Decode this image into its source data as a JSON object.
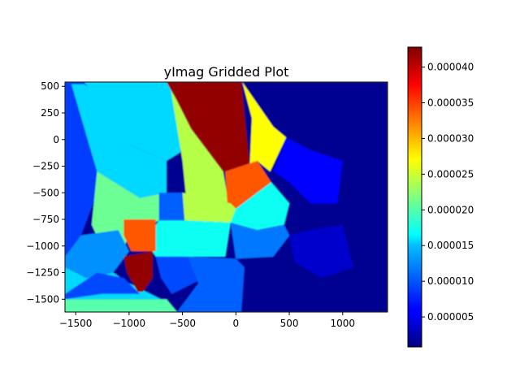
{
  "chart_data": {
    "type": "heatmap",
    "title": "yImag Gridded Plot",
    "xlabel": "",
    "ylabel": "",
    "xlim": [
      -1600,
      1420
    ],
    "ylim": [
      -1620,
      540
    ],
    "x_ticks": [
      -1500,
      -1000,
      -500,
      0,
      500,
      1000
    ],
    "y_ticks": [
      500,
      250,
      0,
      -250,
      -500,
      -750,
      -1000,
      -1250,
      -1500
    ],
    "x_tick_labels": [
      "−1500",
      "−1000",
      "−500",
      "0",
      "500",
      "1000"
    ],
    "y_tick_labels": [
      "500",
      "250",
      "0",
      "−250",
      "−500",
      "−750",
      "−1000",
      "−1250",
      "−1500"
    ],
    "colormap": "jet",
    "colorbar": {
      "range": [
        8e-07,
        4.28e-05
      ],
      "ticks": [
        5e-06,
        1e-05,
        1.5e-05,
        2e-05,
        2.5e-05,
        3e-05,
        3.5e-05,
        4e-05
      ],
      "tick_labels": [
        "0.000005",
        "0.000010",
        "0.000015",
        "0.000020",
        "0.000025",
        "0.000030",
        "0.000035",
        "0.000040"
      ]
    },
    "grid": false,
    "regions": [
      {
        "value": 1.5e-06,
        "points": [
          [
            -1600,
            540
          ],
          [
            1420,
            540
          ],
          [
            1420,
            -1620
          ],
          [
            -1600,
            -1620
          ]
        ]
      },
      {
        "value": 8.5e-06,
        "points": [
          [
            -1600,
            540
          ],
          [
            -900,
            540
          ],
          [
            -1100,
            -200
          ],
          [
            -1300,
            -500
          ],
          [
            -1450,
            -900
          ],
          [
            -1600,
            -1100
          ]
        ]
      },
      {
        "value": 1.5e-05,
        "points": [
          [
            -1540,
            520
          ],
          [
            -1420,
            520
          ],
          [
            -1100,
            250
          ],
          [
            -1000,
            -50
          ],
          [
            -650,
            -200
          ],
          [
            -650,
            -500
          ],
          [
            -900,
            -550
          ],
          [
            -1300,
            -300
          ]
        ]
      },
      {
        "value": 1.5e-05,
        "points": [
          [
            -1420,
            540
          ],
          [
            -620,
            540
          ],
          [
            -500,
            300
          ],
          [
            -520,
            -120
          ],
          [
            -650,
            -200
          ],
          [
            -1000,
            -50
          ]
        ]
      },
      {
        "value": 2.1e-05,
        "points": [
          [
            -1300,
            -300
          ],
          [
            -900,
            -550
          ],
          [
            -650,
            -500
          ],
          [
            -720,
            -760
          ],
          [
            -1000,
            -900
          ],
          [
            -1150,
            -1250
          ],
          [
            -1350,
            -800
          ]
        ]
      },
      {
        "value": 2.4e-05,
        "points": [
          [
            -620,
            540
          ],
          [
            -500,
            420
          ],
          [
            -300,
            200
          ],
          [
            -120,
            -300
          ],
          [
            -50,
            -700
          ],
          [
            -450,
            -700
          ],
          [
            -500,
            -200
          ]
        ]
      },
      {
        "value": 4.2e-05,
        "points": [
          [
            -650,
            540
          ],
          [
            50,
            540
          ],
          [
            130,
            -250
          ],
          [
            -120,
            -300
          ],
          [
            -420,
            100
          ],
          [
            -560,
            380
          ]
        ]
      },
      {
        "value": 2.7e-05,
        "points": [
          [
            60,
            540
          ],
          [
            350,
            120
          ],
          [
            470,
            20
          ],
          [
            320,
            -300
          ],
          [
            200,
            -200
          ],
          [
            130,
            -250
          ],
          [
            150,
            200
          ]
        ]
      },
      {
        "value": 3.4e-05,
        "points": [
          [
            -100,
            -300
          ],
          [
            200,
            -200
          ],
          [
            330,
            -400
          ],
          [
            0,
            -650
          ],
          [
            -80,
            -600
          ]
        ]
      },
      {
        "value": 1.7e-05,
        "points": [
          [
            0,
            -650
          ],
          [
            330,
            -400
          ],
          [
            500,
            -600
          ],
          [
            450,
            -800
          ],
          [
            200,
            -850
          ],
          [
            -200,
            -750
          ]
        ]
      },
      {
        "value": 1e-05,
        "points": [
          [
            -720,
            -500
          ],
          [
            -500,
            -500
          ],
          [
            -480,
            -760
          ],
          [
            -720,
            -760
          ]
        ]
      },
      {
        "value": 2.4e-05,
        "points": [
          [
            -500,
            -500
          ],
          [
            -50,
            -600
          ],
          [
            0,
            -650
          ],
          [
            -50,
            -780
          ],
          [
            -480,
            -760
          ]
        ]
      },
      {
        "value": 1.7e-05,
        "points": [
          [
            -720,
            -760
          ],
          [
            -480,
            -760
          ],
          [
            -400,
            -1100
          ],
          [
            -750,
            -1100
          ],
          [
            -850,
            -950
          ]
        ]
      },
      {
        "value": 1.7e-05,
        "points": [
          [
            -480,
            -760
          ],
          [
            -50,
            -780
          ],
          [
            -100,
            -1100
          ],
          [
            -500,
            -1100
          ]
        ]
      },
      {
        "value": 1.1e-05,
        "points": [
          [
            -50,
            -780
          ],
          [
            200,
            -850
          ],
          [
            450,
            -800
          ],
          [
            500,
            -900
          ],
          [
            350,
            -1100
          ],
          [
            0,
            -1120
          ]
        ]
      },
      {
        "value": 6e-06,
        "points": [
          [
            470,
            20
          ],
          [
            700,
            -100
          ],
          [
            1000,
            -200
          ],
          [
            950,
            -600
          ],
          [
            700,
            -600
          ],
          [
            500,
            -400
          ],
          [
            350,
            -300
          ]
        ]
      },
      {
        "value": 4e-06,
        "points": [
          [
            500,
            -900
          ],
          [
            700,
            -850
          ],
          [
            1000,
            -800
          ],
          [
            1100,
            -1200
          ],
          [
            800,
            -1300
          ],
          [
            550,
            -1150
          ]
        ]
      },
      {
        "value": 9e-06,
        "points": [
          [
            -750,
            -1100
          ],
          [
            -450,
            -1100
          ],
          [
            -300,
            -1300
          ],
          [
            -600,
            -1450
          ],
          [
            -700,
            -1300
          ]
        ]
      },
      {
        "value": 1e-05,
        "points": [
          [
            -450,
            -1100
          ],
          [
            0,
            -1120
          ],
          [
            80,
            -1200
          ],
          [
            50,
            -1620
          ],
          [
            -550,
            -1620
          ],
          [
            -350,
            -1350
          ]
        ]
      },
      {
        "value": 1.2e-05,
        "points": [
          [
            -1450,
            -900
          ],
          [
            -1100,
            -850
          ],
          [
            -1000,
            -1050
          ],
          [
            -1150,
            -1250
          ],
          [
            -1400,
            -1300
          ],
          [
            -1600,
            -1200
          ],
          [
            -1600,
            -1100
          ]
        ]
      },
      {
        "value": 1.5e-05,
        "points": [
          [
            -1600,
            -1200
          ],
          [
            -1400,
            -1300
          ],
          [
            -1150,
            -1250
          ],
          [
            -1000,
            -1350
          ],
          [
            -800,
            -1450
          ],
          [
            -700,
            -1500
          ],
          [
            -1600,
            -1500
          ]
        ]
      },
      {
        "value": 9e-06,
        "points": [
          [
            -1300,
            -1250
          ],
          [
            -1050,
            -1300
          ],
          [
            -900,
            -1450
          ],
          [
            -1250,
            -1450
          ],
          [
            -1600,
            -1500
          ],
          [
            -1600,
            -1450
          ]
        ]
      },
      {
        "value": 2e-05,
        "points": [
          [
            -1600,
            -1500
          ],
          [
            -650,
            -1500
          ],
          [
            -550,
            -1620
          ],
          [
            -1600,
            -1620
          ]
        ]
      },
      {
        "value": 3.4e-05,
        "points": [
          [
            -1050,
            -750
          ],
          [
            -750,
            -750
          ],
          [
            -750,
            -1050
          ],
          [
            -980,
            -1050
          ],
          [
            -1050,
            -900
          ]
        ]
      },
      {
        "value": 4.2e-05,
        "points": [
          [
            -1050,
            -1100
          ],
          [
            -780,
            -1050
          ],
          [
            -780,
            -1300
          ],
          [
            -870,
            -1430
          ],
          [
            -920,
            -1430
          ],
          [
            -1020,
            -1250
          ]
        ]
      }
    ]
  }
}
